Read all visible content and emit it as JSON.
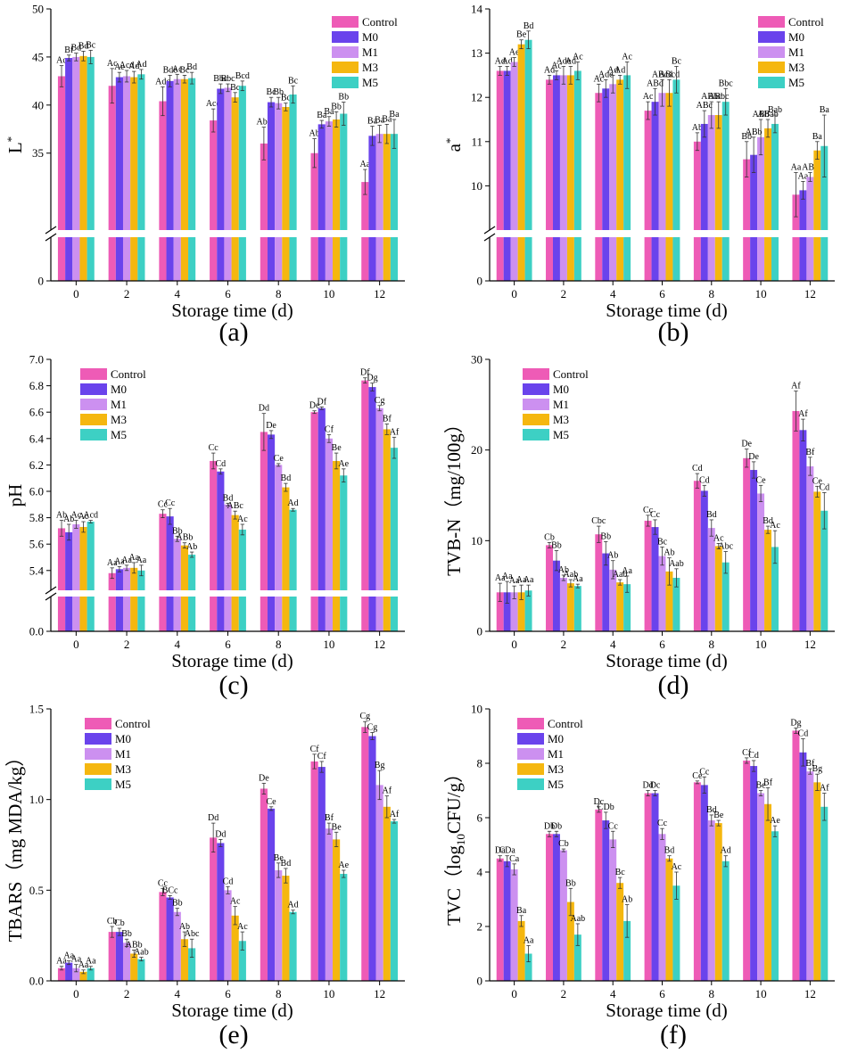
{
  "figure": {
    "series_names": [
      "Control",
      "M0",
      "M1",
      "M3",
      "M5"
    ],
    "series_colors": [
      "#ee5bb6",
      "#6a43ec",
      "#cc90f0",
      "#f5b70f",
      "#3dd0c4"
    ],
    "x_categories": [
      "0",
      "2",
      "4",
      "6",
      "8",
      "10",
      "12"
    ],
    "x_axis_label": "Storage time (d)"
  },
  "chart_data": [
    {
      "id": "a",
      "panel_label": "(a)",
      "type": "bar",
      "ylabel": "L*",
      "ylim": [
        0,
        50
      ],
      "axis_break": [
        3,
        27
      ],
      "yticks": [
        0,
        35,
        40,
        45,
        50
      ],
      "categories": [
        "0",
        "2",
        "4",
        "6",
        "8",
        "10",
        "12"
      ],
      "series": [
        {
          "name": "Control",
          "values": [
            43.0,
            42.0,
            40.4,
            38.4,
            36.0,
            35.0,
            32.0
          ],
          "errors": [
            1.1,
            1.8,
            1.5,
            1.2,
            1.7,
            1.5,
            1.3
          ],
          "labels": [
            "Ac",
            "Ac",
            "Adc",
            "Acd",
            "Abc",
            "Ab",
            "Aa"
          ]
        },
        {
          "name": "M0",
          "values": [
            44.9,
            42.9,
            42.5,
            41.7,
            40.3,
            38.0,
            36.8
          ],
          "errors": [
            0.3,
            0.5,
            0.6,
            0.5,
            0.5,
            0.4,
            1.0
          ],
          "labels": [
            "Bf",
            "Ae",
            "Bde",
            "Bbc",
            "Bc",
            "Ba",
            "Ba"
          ]
        },
        {
          "name": "M1",
          "values": [
            45.0,
            43.0,
            42.7,
            41.8,
            40.2,
            38.3,
            37.0
          ],
          "errors": [
            0.4,
            0.6,
            0.5,
            0.4,
            0.6,
            0.5,
            0.9
          ],
          "labels": [
            "Bd",
            "Acd",
            "Ac",
            "Bbc",
            "Bb",
            "Ba",
            "Ba"
          ]
        },
        {
          "name": "M3",
          "values": [
            45.1,
            42.9,
            42.7,
            40.8,
            39.8,
            38.5,
            37.0
          ],
          "errors": [
            0.5,
            0.6,
            0.4,
            0.5,
            0.4,
            0.8,
            1.0
          ],
          "labels": [
            "Bd",
            "Ad",
            "Bc",
            "Bc",
            "Bc",
            "Bb",
            "Ba"
          ]
        },
        {
          "name": "M5",
          "values": [
            45.0,
            43.2,
            42.8,
            42.0,
            41.1,
            39.1,
            37.0
          ],
          "errors": [
            0.7,
            0.5,
            0.6,
            0.5,
            0.9,
            1.2,
            1.5
          ],
          "labels": [
            "Bc",
            "Ad",
            "Bd",
            "Bcd",
            "Bc",
            "Bb",
            "Ba"
          ]
        }
      ]
    },
    {
      "id": "b",
      "panel_label": "(b)",
      "type": "bar",
      "ylabel": "a*",
      "ylim": [
        0,
        14
      ],
      "axis_break": [
        2,
        9
      ],
      "yticks": [
        0,
        10,
        11,
        12,
        13,
        14
      ],
      "categories": [
        "0",
        "2",
        "4",
        "6",
        "8",
        "10",
        "12"
      ],
      "series": [
        {
          "name": "Control",
          "values": [
            12.6,
            12.4,
            12.1,
            11.7,
            11.0,
            10.6,
            9.8
          ],
          "errors": [
            0.1,
            0.1,
            0.2,
            0.2,
            0.2,
            0.4,
            0.5
          ],
          "labels": [
            "Ad",
            "Ad",
            "Ac",
            "Ac",
            "Ab",
            "Bb",
            "Aa"
          ]
        },
        {
          "name": "M0",
          "values": [
            12.6,
            12.5,
            12.2,
            11.9,
            11.4,
            10.7,
            9.9
          ],
          "errors": [
            0.1,
            0.1,
            0.2,
            0.3,
            0.3,
            0.4,
            0.2
          ],
          "labels": [
            "Ad",
            "Ac",
            "Ade",
            "ABd",
            "ABc",
            "ABb",
            "Aa"
          ]
        },
        {
          "name": "M1",
          "values": [
            12.8,
            12.5,
            12.3,
            12.1,
            11.6,
            11.1,
            10.2
          ],
          "errors": [
            0.1,
            0.2,
            0.2,
            0.3,
            0.3,
            0.4,
            0.1
          ],
          "labels": [
            "Ae",
            "Ade",
            "Ad",
            "ABcd",
            "ABbc",
            "ABb",
            "ABa"
          ]
        },
        {
          "name": "M3",
          "values": [
            13.2,
            12.5,
            12.4,
            12.1,
            11.6,
            11.3,
            10.8
          ],
          "errors": [
            0.1,
            0.2,
            0.1,
            0.3,
            0.3,
            0.2,
            0.2
          ],
          "labels": [
            "Be",
            "Ad",
            "Ad",
            "ABcd",
            "ABbc",
            "ABab",
            "Ba"
          ]
        },
        {
          "name": "M5",
          "values": [
            13.3,
            12.6,
            12.5,
            12.4,
            11.9,
            11.4,
            10.9
          ],
          "errors": [
            0.2,
            0.2,
            0.3,
            0.3,
            0.3,
            0.2,
            0.7
          ],
          "labels": [
            "Bd",
            "Ac",
            "Ac",
            "Bc",
            "Bbc",
            "Bab",
            "Ba"
          ]
        }
      ]
    },
    {
      "id": "c",
      "panel_label": "(c)",
      "type": "bar",
      "ylabel": "pH",
      "ylim": [
        0,
        7.0
      ],
      "axis_break": [
        0.5,
        5.25
      ],
      "yticks": [
        0.0,
        5.4,
        5.6,
        5.8,
        6.0,
        6.2,
        6.4,
        6.6,
        6.8,
        7.0
      ],
      "categories": [
        "0",
        "2",
        "4",
        "6",
        "8",
        "10",
        "12"
      ],
      "series": [
        {
          "name": "Control",
          "values": [
            5.72,
            5.38,
            5.83,
            6.23,
            6.45,
            6.6,
            6.84
          ],
          "errors": [
            0.06,
            0.04,
            0.03,
            0.06,
            0.14,
            0.01,
            0.02
          ],
          "labels": [
            "Ab",
            "Aa",
            "Cc",
            "Cc",
            "Dd",
            "De",
            "Df"
          ]
        },
        {
          "name": "M0",
          "values": [
            5.69,
            5.41,
            5.81,
            6.15,
            6.43,
            6.63,
            6.79
          ],
          "errors": [
            0.06,
            0.02,
            0.06,
            0.02,
            0.03,
            0.01,
            0.03
          ],
          "labels": [
            "Ab",
            "Aa",
            "Cc",
            "Cd",
            "De",
            "Df",
            "Dg"
          ]
        },
        {
          "name": "M1",
          "values": [
            5.75,
            5.42,
            5.64,
            5.9,
            6.2,
            6.4,
            6.63
          ],
          "errors": [
            0.03,
            0.02,
            0.02,
            0.01,
            0.01,
            0.03,
            0.02
          ],
          "labels": [
            "Ac",
            "Aa",
            "Bb",
            "Bd",
            "Ce",
            "Cf",
            "Cg"
          ]
        },
        {
          "name": "M3",
          "values": [
            5.73,
            5.42,
            5.59,
            5.82,
            6.03,
            6.23,
            6.47
          ],
          "errors": [
            0.04,
            0.04,
            0.02,
            0.03,
            0.03,
            0.06,
            0.04
          ],
          "labels": [
            "Ac",
            "Aa",
            "ABb",
            "ABc",
            "Bd",
            "Be",
            "Bf"
          ]
        },
        {
          "name": "M5",
          "values": [
            5.77,
            5.4,
            5.52,
            5.71,
            5.86,
            6.12,
            6.33
          ],
          "errors": [
            0.01,
            0.04,
            0.02,
            0.04,
            0.01,
            0.05,
            0.08
          ],
          "labels": [
            "Acd",
            "Aa",
            "Ab",
            "Ac",
            "Ad",
            "Ae",
            "Af"
          ]
        }
      ]
    },
    {
      "id": "d",
      "panel_label": "(d)",
      "type": "bar",
      "ylabel": "TVB-N（mg/100g）",
      "ylim": [
        0,
        30
      ],
      "yticks": [
        0,
        10,
        20,
        30
      ],
      "categories": [
        "0",
        "2",
        "4",
        "6",
        "8",
        "10",
        "12"
      ],
      "series": [
        {
          "name": "Control",
          "values": [
            4.3,
            9.5,
            10.7,
            12.2,
            16.6,
            19.1,
            24.3
          ],
          "errors": [
            1.0,
            0.3,
            0.9,
            0.6,
            0.8,
            1.0,
            2.2
          ],
          "labels": [
            "Aa",
            "Cb",
            "Cbc",
            "Cc",
            "Cd",
            "De",
            "Af"
          ]
        },
        {
          "name": "M0",
          "values": [
            4.3,
            7.8,
            8.6,
            11.5,
            15.5,
            17.8,
            22.2
          ],
          "errors": [
            1.2,
            1.1,
            1.3,
            0.8,
            0.6,
            0.9,
            1.2
          ],
          "labels": [
            "Aa",
            "Bb",
            "Bb",
            "Cc",
            "Cd",
            "De",
            "Af"
          ]
        },
        {
          "name": "M1",
          "values": [
            4.3,
            5.9,
            6.8,
            8.3,
            11.4,
            15.2,
            18.2
          ],
          "errors": [
            0.7,
            0.3,
            1.0,
            1.0,
            0.9,
            0.9,
            1.0
          ],
          "labels": [
            "Aa",
            "Ab",
            "Ab",
            "Bc",
            "Bd",
            "Ce",
            "Bf"
          ]
        },
        {
          "name": "M3",
          "values": [
            4.3,
            5.3,
            5.4,
            6.6,
            9.4,
            11.2,
            15.4
          ],
          "errors": [
            0.8,
            0.4,
            0.3,
            1.5,
            0.3,
            0.4,
            0.6
          ],
          "labels": [
            "Aa",
            "Aab",
            "Aab",
            "Ab",
            "Ac",
            "Bd",
            "Ce"
          ]
        },
        {
          "name": "M5",
          "values": [
            4.5,
            5.0,
            5.2,
            5.9,
            7.6,
            9.3,
            13.3
          ],
          "errors": [
            0.6,
            0.2,
            0.9,
            1.0,
            1.2,
            1.8,
            2.0
          ],
          "labels": [
            "Aa",
            "Aa",
            "Aa",
            "Aab",
            "Abc",
            "Ac",
            "Cd"
          ]
        }
      ]
    },
    {
      "id": "e",
      "panel_label": "(e)",
      "type": "bar",
      "ylabel": "TBARS（mg MDA/kg）",
      "ylim": [
        0,
        1.5
      ],
      "yticks": [
        0.0,
        0.5,
        1.0,
        1.5
      ],
      "categories": [
        "0",
        "2",
        "4",
        "6",
        "8",
        "10",
        "12"
      ],
      "series": [
        {
          "name": "Control",
          "values": [
            0.07,
            0.27,
            0.49,
            0.79,
            1.06,
            1.21,
            1.4
          ],
          "errors": [
            0.01,
            0.03,
            0.02,
            0.08,
            0.03,
            0.04,
            0.03
          ],
          "labels": [
            "Aa",
            "Cb",
            "Cc",
            "Dd",
            "De",
            "Cf",
            "Cg"
          ]
        },
        {
          "name": "M0",
          "values": [
            0.1,
            0.27,
            0.46,
            0.76,
            0.95,
            1.18,
            1.35
          ],
          "errors": [
            0.01,
            0.02,
            0.01,
            0.02,
            0.01,
            0.03,
            0.02
          ],
          "labels": [
            "Aa",
            "Cb",
            "BCc",
            "Dd",
            "Ce",
            "Cf",
            "Cg"
          ]
        },
        {
          "name": "M1",
          "values": [
            0.07,
            0.21,
            0.38,
            0.5,
            0.61,
            0.84,
            1.08
          ],
          "errors": [
            0.02,
            0.02,
            0.02,
            0.02,
            0.04,
            0.03,
            0.08
          ],
          "labels": [
            "Aa",
            "Bb",
            "Bb",
            "Cd",
            "Be",
            "Bf",
            "Bg"
          ]
        },
        {
          "name": "M3",
          "values": [
            0.05,
            0.15,
            0.23,
            0.36,
            0.58,
            0.78,
            0.96
          ],
          "errors": [
            0.01,
            0.02,
            0.04,
            0.05,
            0.04,
            0.04,
            0.06
          ],
          "labels": [
            "Aa",
            "ABb",
            "Ab",
            "Ac",
            "Bd",
            "Be",
            "Af"
          ]
        },
        {
          "name": "M5",
          "values": [
            0.07,
            0.12,
            0.18,
            0.22,
            0.38,
            0.59,
            0.88
          ],
          "errors": [
            0.01,
            0.01,
            0.05,
            0.05,
            0.01,
            0.02,
            0.01
          ],
          "labels": [
            "Aa",
            "Aab",
            "Abc",
            "Ac",
            "Ad",
            "Ae",
            "Af"
          ]
        }
      ]
    },
    {
      "id": "f",
      "panel_label": "(f)",
      "type": "bar",
      "ylabel": "TVC（log10CFU/g）",
      "ylim": [
        0,
        10
      ],
      "yticks": [
        0,
        2,
        4,
        6,
        8,
        10
      ],
      "categories": [
        "0",
        "2",
        "4",
        "6",
        "8",
        "10",
        "12"
      ],
      "series": [
        {
          "name": "Control",
          "values": [
            4.5,
            5.4,
            6.3,
            6.9,
            7.3,
            8.1,
            9.2
          ],
          "errors": [
            0.1,
            0.1,
            0.1,
            0.1,
            0.05,
            0.1,
            0.1
          ],
          "labels": [
            "Da",
            "Db",
            "Dc",
            "Dd",
            "Ce",
            "Cf",
            "Dg"
          ]
        },
        {
          "name": "M0",
          "values": [
            4.4,
            5.4,
            5.9,
            6.9,
            7.2,
            7.9,
            8.4
          ],
          "errors": [
            0.2,
            0.1,
            0.3,
            0.1,
            0.3,
            0.2,
            0.5
          ],
          "labels": [
            "CDa",
            "Db",
            "CDb",
            "Dc",
            "Cc",
            "Cd",
            "Cd"
          ]
        },
        {
          "name": "M1",
          "values": [
            4.1,
            4.8,
            5.2,
            5.4,
            5.9,
            6.9,
            7.7
          ],
          "errors": [
            0.2,
            0.05,
            0.3,
            0.2,
            0.2,
            0.1,
            0.1
          ],
          "labels": [
            "Ca",
            "Cb",
            "Cc",
            "Cc",
            "Bd",
            "Be",
            "Bf"
          ]
        },
        {
          "name": "M3",
          "values": [
            2.2,
            2.9,
            3.6,
            4.5,
            5.8,
            6.5,
            7.3
          ],
          "errors": [
            0.2,
            0.5,
            0.2,
            0.1,
            0.1,
            0.6,
            0.3
          ],
          "labels": [
            "Ba",
            "Bb",
            "Bc",
            "Bd",
            "Be",
            "Bf",
            "Bg"
          ]
        },
        {
          "name": "M5",
          "values": [
            1.0,
            1.7,
            2.2,
            3.5,
            4.4,
            5.5,
            6.4
          ],
          "errors": [
            0.3,
            0.4,
            0.6,
            0.5,
            0.2,
            0.2,
            0.5
          ],
          "labels": [
            "Aa",
            "Aab",
            "Ab",
            "Ac",
            "Ad",
            "Ae",
            "Af"
          ]
        }
      ]
    }
  ]
}
